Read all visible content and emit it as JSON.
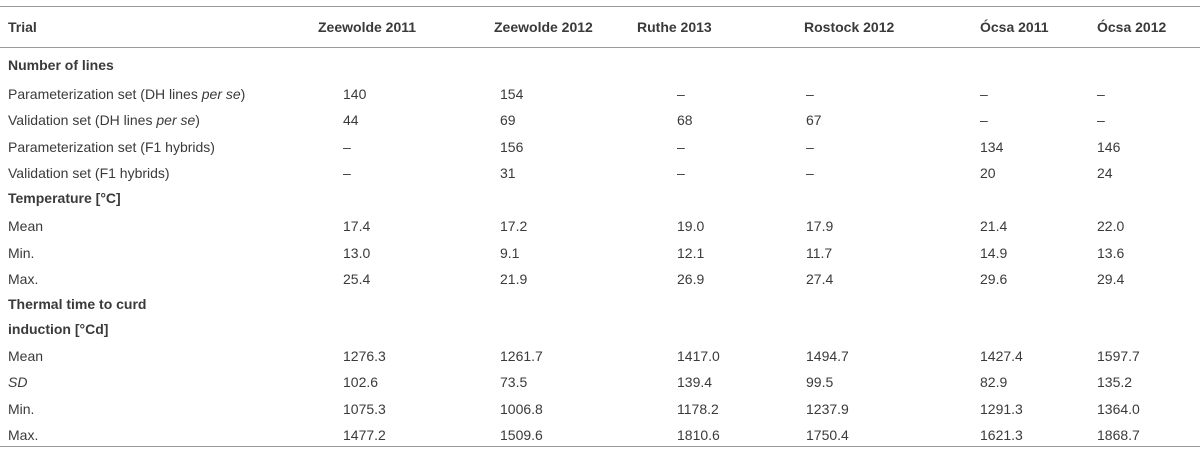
{
  "table": {
    "header": [
      "Trial",
      "Zeewolde 2011",
      "Zeewolde 2012",
      "Ruthe 2013",
      "Rostock 2012",
      "Ócsa 2011",
      "Ócsa 2012"
    ],
    "sections": [
      {
        "title": "Number of lines",
        "rows": [
          {
            "label": [
              {
                "text": "Parameterization set (DH lines ",
                "italic": false
              },
              {
                "text": "per se",
                "italic": true
              },
              {
                "text": ")",
                "italic": false
              }
            ],
            "cells": [
              "140",
              "154",
              "–",
              "–",
              "–",
              "–"
            ]
          },
          {
            "label": [
              {
                "text": "Validation set (DH lines ",
                "italic": false
              },
              {
                "text": "per se",
                "italic": true
              },
              {
                "text": ")",
                "italic": false
              }
            ],
            "cells": [
              "44",
              "69",
              "68",
              "67",
              "–",
              "–"
            ]
          },
          {
            "label": [
              {
                "text": "Parameterization set (F1 hybrids)",
                "italic": false
              }
            ],
            "cells": [
              "–",
              "156",
              "–",
              "–",
              "134",
              "146"
            ]
          },
          {
            "label": [
              {
                "text": "Validation set (F1 hybrids)",
                "italic": false
              }
            ],
            "cells": [
              "–",
              "31",
              "–",
              "–",
              "20",
              "24"
            ]
          }
        ]
      },
      {
        "title": "Temperature [°C]",
        "rows": [
          {
            "label": [
              {
                "text": "Mean",
                "italic": false
              }
            ],
            "cells": [
              "17.4",
              "17.2",
              "19.0",
              "17.9",
              "21.4",
              "22.0"
            ]
          },
          {
            "label": [
              {
                "text": "Min.",
                "italic": false
              }
            ],
            "cells": [
              "13.0",
              "9.1",
              "12.1",
              "11.7",
              "14.9",
              "13.6"
            ]
          },
          {
            "label": [
              {
                "text": "Max.",
                "italic": false
              }
            ],
            "cells": [
              "25.4",
              "21.9",
              "26.9",
              "27.4",
              "29.6",
              "29.4"
            ]
          }
        ]
      },
      {
        "title": "Thermal time to curd induction [°Cd]",
        "rows": [
          {
            "label": [
              {
                "text": "Mean",
                "italic": false
              }
            ],
            "cells": [
              "1276.3",
              "1261.7",
              "1417.0",
              "1494.7",
              "1427.4",
              "1597.7"
            ]
          },
          {
            "label": [
              {
                "text": "SD",
                "italic": true
              }
            ],
            "cells": [
              "102.6",
              "73.5",
              "139.4",
              "99.5",
              "82.9",
              "135.2"
            ]
          },
          {
            "label": [
              {
                "text": "Min.",
                "italic": false
              }
            ],
            "cells": [
              "1075.3",
              "1006.8",
              "1178.2",
              "1237.9",
              "1291.3",
              "1364.0"
            ]
          },
          {
            "label": [
              {
                "text": "Max.",
                "italic": false
              }
            ],
            "cells": [
              "1477.2",
              "1509.6",
              "1810.6",
              "1750.4",
              "1621.3",
              "1868.7"
            ]
          }
        ]
      }
    ]
  }
}
